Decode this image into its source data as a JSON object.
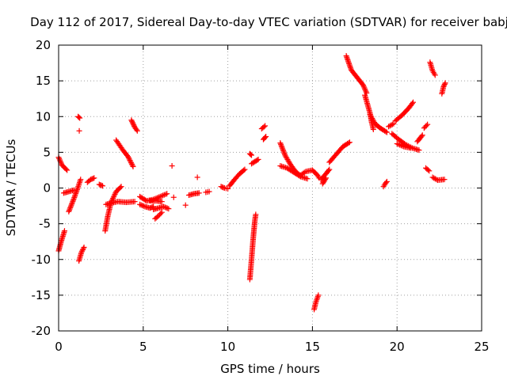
{
  "chart_data": {
    "type": "scatter",
    "title": "Day 112 of 2017, Sidereal Day-to-day VTEC variation (SDTVAR) for receiver babj",
    "xlabel": "GPS time / hours",
    "ylabel": "SDTVAR / TECUs",
    "xlim": [
      0,
      25
    ],
    "ylim": [
      -20,
      20
    ],
    "xticks": [
      "0",
      "5",
      "10",
      "15",
      "20",
      "25"
    ],
    "yticks": [
      "-20",
      "-15",
      "-10",
      "-5",
      "0",
      "5",
      "10",
      "15",
      "20"
    ],
    "grid": true,
    "marker": "+",
    "color": "#ff0000",
    "arcs": [
      [
        [
          0.0,
          -8.8
        ],
        [
          0.15,
          -7.5
        ],
        [
          0.35,
          -6.0
        ]
      ],
      [
        [
          0.0,
          4.3
        ],
        [
          0.2,
          3.2
        ],
        [
          0.5,
          2.5
        ]
      ],
      [
        [
          0.3,
          -0.7
        ],
        [
          0.6,
          -0.5
        ],
        [
          0.9,
          -0.3
        ]
      ],
      [
        [
          0.6,
          -3.3
        ],
        [
          0.9,
          -1.5
        ],
        [
          1.1,
          -0.2
        ],
        [
          1.3,
          1.2
        ]
      ],
      [
        [
          1.15,
          10.0
        ],
        [
          1.25,
          9.8
        ]
      ],
      [
        [
          1.22,
          8.0
        ]
      ],
      [
        [
          1.2,
          -10.2
        ],
        [
          1.35,
          -9.0
        ],
        [
          1.5,
          -8.3
        ]
      ],
      [
        [
          1.7,
          0.8
        ],
        [
          1.9,
          1.2
        ],
        [
          2.1,
          1.4
        ]
      ],
      [
        [
          2.4,
          0.5
        ],
        [
          2.6,
          0.3
        ]
      ],
      [
        [
          2.75,
          -6.0
        ],
        [
          2.9,
          -4.0
        ],
        [
          3.1,
          -2.0
        ],
        [
          3.4,
          -0.5
        ],
        [
          3.7,
          0.2
        ]
      ],
      [
        [
          2.8,
          -2.3
        ],
        [
          3.1,
          -2.1
        ],
        [
          3.5,
          -1.9
        ],
        [
          4.0,
          -2.0
        ],
        [
          4.5,
          -1.9
        ]
      ],
      [
        [
          3.4,
          6.7
        ],
        [
          3.8,
          5.3
        ],
        [
          4.1,
          4.4
        ],
        [
          4.4,
          3.0
        ]
      ],
      [
        [
          4.3,
          9.5
        ],
        [
          4.5,
          8.5
        ],
        [
          4.65,
          8.0
        ]
      ],
      [
        [
          4.8,
          -1.2
        ],
        [
          5.2,
          -1.8
        ],
        [
          5.6,
          -1.6
        ],
        [
          6.0,
          -1.2
        ],
        [
          6.4,
          -0.8
        ]
      ],
      [
        [
          4.8,
          -2.3
        ],
        [
          5.1,
          -2.6
        ],
        [
          5.4,
          -2.8
        ],
        [
          5.6,
          -2.6
        ]
      ],
      [
        [
          5.4,
          -1.8
        ],
        [
          5.8,
          -1.8
        ],
        [
          6.1,
          -1.9
        ]
      ],
      [
        [
          5.6,
          -3.0
        ],
        [
          5.9,
          -2.8
        ],
        [
          6.2,
          -2.6
        ],
        [
          6.5,
          -2.9
        ]
      ],
      [
        [
          5.7,
          -4.3
        ],
        [
          5.9,
          -3.9
        ],
        [
          6.1,
          -3.4
        ]
      ],
      [
        [
          6.7,
          3.1
        ]
      ],
      [
        [
          6.8,
          -1.3
        ]
      ],
      [
        [
          7.5,
          -2.4
        ]
      ],
      [
        [
          7.7,
          -1.0
        ],
        [
          8.0,
          -0.8
        ],
        [
          8.3,
          -0.7
        ]
      ],
      [
        [
          8.2,
          1.5
        ]
      ],
      [
        [
          8.7,
          -0.6
        ],
        [
          8.9,
          -0.5
        ]
      ],
      [
        [
          9.6,
          0.2
        ],
        [
          9.8,
          0.0
        ],
        [
          10.0,
          -0.1
        ]
      ],
      [
        [
          10.1,
          0.3
        ],
        [
          10.4,
          1.2
        ],
        [
          10.7,
          2.0
        ],
        [
          11.0,
          2.6
        ]
      ],
      [
        [
          11.3,
          4.8
        ],
        [
          11.4,
          4.6
        ]
      ],
      [
        [
          11.3,
          -12.8
        ],
        [
          11.4,
          -10.0
        ],
        [
          11.5,
          -7.0
        ],
        [
          11.6,
          -4.5
        ],
        [
          11.65,
          -3.7
        ]
      ],
      [
        [
          11.4,
          3.4
        ],
        [
          11.6,
          3.7
        ],
        [
          11.8,
          4.0
        ]
      ],
      [
        [
          12.0,
          8.3
        ],
        [
          12.2,
          8.7
        ]
      ],
      [
        [
          12.1,
          6.8
        ],
        [
          12.25,
          7.2
        ]
      ],
      [
        [
          13.1,
          6.3
        ],
        [
          13.4,
          4.5
        ],
        [
          13.7,
          3.3
        ],
        [
          14.0,
          2.3
        ],
        [
          14.3,
          1.7
        ]
      ],
      [
        [
          13.1,
          3.1
        ],
        [
          13.5,
          2.8
        ],
        [
          13.9,
          2.2
        ],
        [
          14.3,
          1.6
        ],
        [
          14.7,
          1.3
        ]
      ],
      [
        [
          14.3,
          1.8
        ],
        [
          14.6,
          2.3
        ],
        [
          15.0,
          2.5
        ],
        [
          15.3,
          1.8
        ],
        [
          15.4,
          1.4
        ]
      ],
      [
        [
          15.1,
          -17.0
        ],
        [
          15.2,
          -16.0
        ],
        [
          15.35,
          -15.0
        ]
      ],
      [
        [
          15.5,
          1.2
        ],
        [
          15.8,
          2.0
        ],
        [
          16.0,
          2.6
        ]
      ],
      [
        [
          15.6,
          0.6
        ],
        [
          15.8,
          1.4
        ]
      ],
      [
        [
          16.0,
          3.6
        ],
        [
          16.4,
          4.7
        ],
        [
          16.8,
          5.8
        ],
        [
          17.2,
          6.4
        ]
      ],
      [
        [
          17.0,
          18.5
        ],
        [
          17.3,
          16.5
        ],
        [
          17.7,
          15.3
        ],
        [
          18.0,
          14.4
        ],
        [
          18.2,
          13.3
        ]
      ],
      [
        [
          18.1,
          13.0
        ],
        [
          18.4,
          10.5
        ],
        [
          18.5,
          9.2
        ],
        [
          18.6,
          8.2
        ]
      ],
      [
        [
          18.4,
          10.3
        ],
        [
          18.7,
          9.0
        ],
        [
          19.0,
          8.4
        ],
        [
          19.4,
          7.8
        ]
      ],
      [
        [
          19.2,
          0.2
        ],
        [
          19.3,
          0.6
        ],
        [
          19.4,
          0.9
        ]
      ],
      [
        [
          19.5,
          8.6
        ],
        [
          19.8,
          9.0
        ]
      ],
      [
        [
          19.9,
          9.4
        ],
        [
          20.3,
          10.2
        ],
        [
          20.7,
          11.2
        ],
        [
          20.95,
          12.0
        ]
      ],
      [
        [
          19.7,
          7.6
        ],
        [
          20.1,
          6.8
        ],
        [
          20.5,
          6.1
        ],
        [
          20.9,
          5.6
        ],
        [
          21.3,
          5.3
        ]
      ],
      [
        [
          20.0,
          6.2
        ],
        [
          20.4,
          5.8
        ],
        [
          20.8,
          5.6
        ]
      ],
      [
        [
          21.2,
          6.5
        ],
        [
          21.5,
          7.4
        ]
      ],
      [
        [
          21.6,
          8.4
        ],
        [
          21.8,
          8.9
        ]
      ],
      [
        [
          21.7,
          2.8
        ],
        [
          21.9,
          2.4
        ]
      ],
      [
        [
          21.95,
          17.6
        ],
        [
          22.1,
          16.4
        ],
        [
          22.25,
          15.8
        ]
      ],
      [
        [
          22.1,
          1.5
        ],
        [
          22.4,
          1.1
        ],
        [
          22.8,
          1.2
        ]
      ],
      [
        [
          22.65,
          13.2
        ],
        [
          22.75,
          14.2
        ],
        [
          22.85,
          14.7
        ]
      ]
    ]
  }
}
